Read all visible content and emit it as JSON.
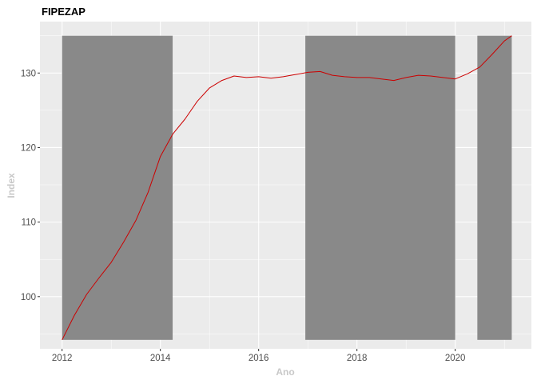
{
  "chart_data": {
    "type": "line",
    "title": "FIPEZAP",
    "xlabel": "Ano",
    "ylabel": "Index",
    "x_ticks": [
      2012,
      2014,
      2016,
      2018,
      2020
    ],
    "y_ticks": [
      100,
      110,
      120,
      130
    ],
    "xlim": [
      2011.55,
      2021.55
    ],
    "ylim": [
      93.0,
      136.9
    ],
    "grid": true,
    "legend": "none",
    "colors": {
      "line": "#cc0000",
      "band": "#898989",
      "panel": "#ebebeb",
      "grid": "#ffffff"
    },
    "shaded_periods": [
      {
        "start": 2012.0,
        "end": 2014.25,
        "ymin": 94.2,
        "ymax": 135.0
      },
      {
        "start": 2016.95,
        "end": 2020.0,
        "ymin": 94.2,
        "ymax": 135.0
      },
      {
        "start": 2020.45,
        "end": 2021.15,
        "ymin": 94.2,
        "ymax": 135.0
      }
    ],
    "series": [
      {
        "x": [
          2012.0,
          2012.25,
          2012.5,
          2012.75,
          2013.0,
          2013.25,
          2013.5,
          2013.75,
          2014.0,
          2014.25,
          2014.5,
          2014.75,
          2015.0,
          2015.25,
          2015.5,
          2015.75,
          2016.0,
          2016.25,
          2016.5,
          2016.75,
          2017.0,
          2017.25,
          2017.5,
          2017.75,
          2018.0,
          2018.25,
          2018.5,
          2018.75,
          2019.0,
          2019.25,
          2019.5,
          2019.75,
          2020.0,
          2020.25,
          2020.5,
          2020.75,
          2021.0,
          2021.15
        ],
        "values": [
          94.2,
          97.5,
          100.3,
          102.5,
          104.6,
          107.3,
          110.2,
          114.0,
          118.8,
          121.8,
          123.8,
          126.2,
          128.0,
          129.0,
          129.6,
          129.4,
          129.5,
          129.3,
          129.5,
          129.8,
          130.1,
          130.2,
          129.7,
          129.5,
          129.4,
          129.4,
          129.2,
          129.0,
          129.4,
          129.7,
          129.6,
          129.4,
          129.2,
          129.9,
          130.8,
          132.5,
          134.3,
          135.0
        ]
      }
    ]
  }
}
